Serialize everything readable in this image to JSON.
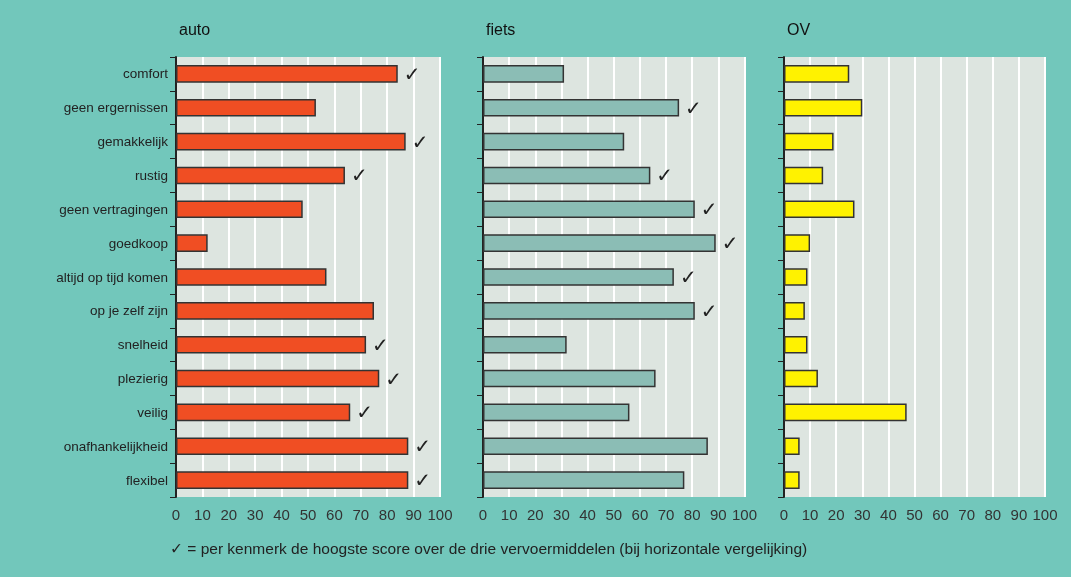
{
  "chart_data": [
    {
      "type": "bar",
      "orientation": "horizontal",
      "title": "auto",
      "categories": [
        "comfort",
        "geen ergernissen",
        "gemakkelijk",
        "rustig",
        "geen vertragingen",
        "goedkoop",
        "altijd op tijd komen",
        "op je zelf zijn",
        "snelheid",
        "plezierig",
        "veilig",
        "onafhankelijkheid",
        "flexibel"
      ],
      "values": [
        84,
        53,
        87,
        64,
        48,
        12,
        57,
        75,
        72,
        77,
        66,
        88,
        88
      ],
      "value_labels": [
        "✓",
        null,
        "✓",
        "✓",
        null,
        null,
        null,
        null,
        "✓",
        "✓",
        "✓",
        "✓",
        "✓"
      ],
      "color": "#f04e23",
      "xlim": [
        0,
        100
      ],
      "xticks": [
        0,
        10,
        20,
        30,
        40,
        50,
        60,
        70,
        80,
        90,
        100
      ],
      "grid": "x",
      "annotations": [
        "✓ = per kenmerk de hoogste score over de drie vervoermiddelen (bij horizontale vergelijking)"
      ]
    },
    {
      "type": "bar",
      "orientation": "horizontal",
      "title": "fiets",
      "categories": [
        null,
        null,
        null,
        null,
        null,
        null,
        null,
        null,
        null,
        null,
        null,
        null,
        null
      ],
      "values": [
        31,
        75,
        54,
        64,
        81,
        89,
        73,
        81,
        32,
        66,
        56,
        86,
        77
      ],
      "value_labels": [
        null,
        "✓",
        null,
        "✓",
        "✓",
        "✓",
        "✓",
        "✓",
        null,
        null,
        null,
        null,
        null
      ],
      "color": "#8bbdb5",
      "xlim": [
        0,
        100
      ],
      "xticks": [
        0,
        10,
        20,
        30,
        40,
        50,
        60,
        70,
        80,
        90,
        100
      ],
      "grid": "x"
    },
    {
      "type": "bar",
      "orientation": "horizontal",
      "title": "OV",
      "categories": [
        null,
        null,
        null,
        null,
        null,
        null,
        null,
        null,
        null,
        null,
        null,
        null,
        null
      ],
      "values": [
        25,
        30,
        19,
        15,
        27,
        10,
        9,
        8,
        9,
        13,
        47,
        6,
        6
      ],
      "color": "#fff200",
      "xlim": [
        0,
        100
      ],
      "xticks": [
        0,
        10,
        20,
        30,
        40,
        50,
        60,
        70,
        80,
        90,
        100
      ],
      "grid": "x"
    }
  ]
}
